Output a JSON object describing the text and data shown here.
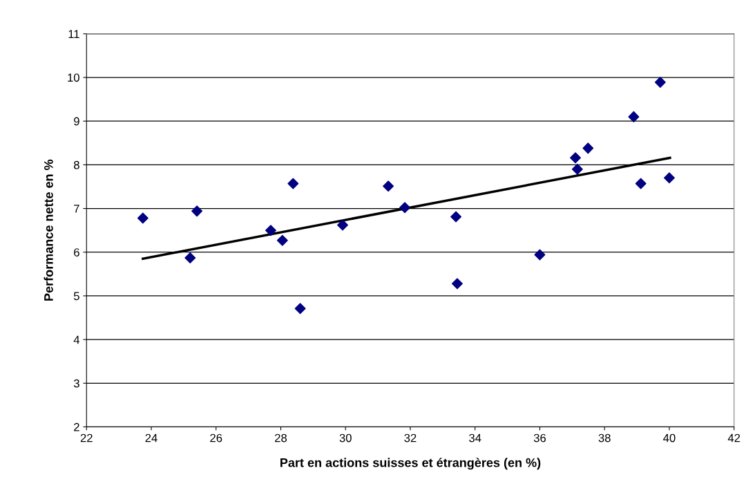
{
  "chart_data": {
    "type": "scatter",
    "xlabel": "Part en actions suisses et étrangères (en %)",
    "ylabel": "Performance nette en %",
    "xlim": [
      22,
      42
    ],
    "xticks": [
      22,
      24,
      26,
      28,
      30,
      32,
      34,
      36,
      38,
      40,
      42
    ],
    "ylim": [
      2,
      11
    ],
    "yticks": [
      2,
      3,
      4,
      5,
      6,
      7,
      8,
      9,
      10,
      11
    ],
    "grid": "y",
    "legend": false,
    "series": [
      {
        "color": "#000080",
        "marker": "diamond",
        "x": [
          23.74,
          25.41,
          25.2,
          27.69,
          28.05,
          28.38,
          28.6,
          29.91,
          31.32,
          31.83,
          33.41,
          33.45,
          36.0,
          37.1,
          37.16,
          37.49,
          38.9,
          39.12,
          39.72,
          40.0
        ],
        "values": [
          6.78,
          6.94,
          5.87,
          6.5,
          6.27,
          7.57,
          4.71,
          6.62,
          7.51,
          7.02,
          6.81,
          5.28,
          5.94,
          8.16,
          7.9,
          8.38,
          9.1,
          7.57,
          9.89,
          7.7
        ]
      },
      {
        "type": "line",
        "color": "#000000",
        "marker": "none",
        "line_style": "solid",
        "x": [
          23.74,
          40.02
        ],
        "values": [
          5.85,
          8.16
        ]
      }
    ]
  }
}
